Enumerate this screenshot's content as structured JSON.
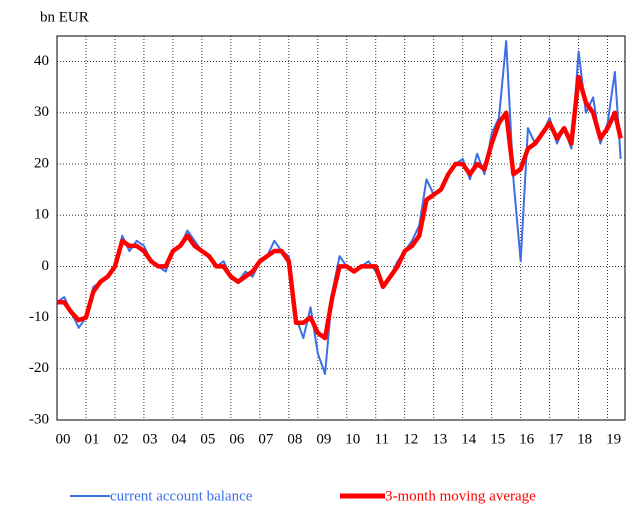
{
  "chart_data": {
    "type": "line",
    "y_axis_label": "bn EUR",
    "x": [
      2000,
      2000.25,
      2000.5,
      2000.75,
      2001,
      2001.25,
      2001.5,
      2001.75,
      2002,
      2002.25,
      2002.5,
      2002.75,
      2003,
      2003.25,
      2003.5,
      2003.75,
      2004,
      2004.25,
      2004.5,
      2004.75,
      2005,
      2005.25,
      2005.5,
      2005.75,
      2006,
      2006.25,
      2006.5,
      2006.75,
      2007,
      2007.25,
      2007.5,
      2007.75,
      2008,
      2008.25,
      2008.5,
      2008.75,
      2009,
      2009.25,
      2009.5,
      2009.75,
      2010,
      2010.25,
      2010.5,
      2010.75,
      2011,
      2011.25,
      2011.5,
      2011.75,
      2012,
      2012.25,
      2012.5,
      2012.75,
      2013,
      2013.25,
      2013.5,
      2013.75,
      2014,
      2014.25,
      2014.5,
      2014.75,
      2015,
      2015.25,
      2015.5,
      2015.75,
      2016,
      2016.25,
      2016.5,
      2016.75,
      2017,
      2017.25,
      2017.5,
      2017.75,
      2018,
      2018.25,
      2018.5,
      2018.75,
      2019,
      2019.25,
      2019.45
    ],
    "series": [
      {
        "name": "current account balance",
        "color": "#3a6fe6",
        "values": [
          -7,
          -6,
          -9,
          -12,
          -10,
          -4,
          -3,
          -2,
          0,
          6,
          3,
          5,
          4,
          1,
          0,
          -1,
          3,
          4,
          7,
          5,
          3,
          2,
          0,
          1,
          -2,
          -3,
          -1,
          -2,
          1,
          2,
          5,
          3,
          2,
          -10,
          -14,
          -8,
          -17,
          -21,
          -5,
          2,
          0,
          -1,
          0,
          1,
          -1,
          -4,
          -2,
          1,
          3,
          5,
          8,
          17,
          14,
          15,
          18,
          20,
          21,
          17,
          22,
          18,
          26,
          29,
          44,
          17,
          1,
          27,
          24,
          26,
          29,
          24,
          27,
          23,
          42,
          30,
          33,
          24,
          28,
          38,
          21
        ]
      },
      {
        "name": "3-month moving average",
        "color": "#ff0000",
        "values": [
          -7,
          -7,
          -9,
          -10.5,
          -10,
          -5,
          -3,
          -2,
          0,
          5,
          4,
          4,
          3,
          1,
          0,
          0,
          3,
          4,
          6,
          4,
          3,
          2,
          0,
          0,
          -2,
          -3,
          -2,
          -1,
          1,
          2,
          3,
          3,
          1,
          -11,
          -11,
          -10,
          -13,
          -14,
          -6,
          0,
          0,
          -1,
          0,
          0,
          0,
          -4,
          -2,
          0,
          3,
          4,
          6,
          13,
          14,
          15,
          18,
          20,
          20,
          18,
          20,
          19,
          24,
          28,
          30,
          18,
          19,
          23,
          24,
          26,
          28,
          25,
          27,
          24,
          37,
          32,
          30,
          25,
          27,
          30,
          25
        ]
      }
    ],
    "xlim": [
      2000,
      2019.6
    ],
    "xticks": [
      {
        "value": 2000,
        "label": "00"
      },
      {
        "value": 2001,
        "label": "01"
      },
      {
        "value": 2002,
        "label": "02"
      },
      {
        "value": 2003,
        "label": "03"
      },
      {
        "value": 2004,
        "label": "04"
      },
      {
        "value": 2005,
        "label": "05"
      },
      {
        "value": 2006,
        "label": "06"
      },
      {
        "value": 2007,
        "label": "07"
      },
      {
        "value": 2008,
        "label": "08"
      },
      {
        "value": 2009,
        "label": "09"
      },
      {
        "value": 2010,
        "label": "10"
      },
      {
        "value": 2011,
        "label": "11"
      },
      {
        "value": 2012,
        "label": "12"
      },
      {
        "value": 2013,
        "label": "13"
      },
      {
        "value": 2014,
        "label": "14"
      },
      {
        "value": 2015,
        "label": "15"
      },
      {
        "value": 2016,
        "label": "16"
      },
      {
        "value": 2017,
        "label": "17"
      },
      {
        "value": 2018,
        "label": "18"
      },
      {
        "value": 2019,
        "label": "19"
      }
    ],
    "ylim": [
      -30,
      45
    ],
    "yticks": [
      -30,
      -20,
      -10,
      0,
      10,
      20,
      30,
      40
    ],
    "grid": true
  }
}
